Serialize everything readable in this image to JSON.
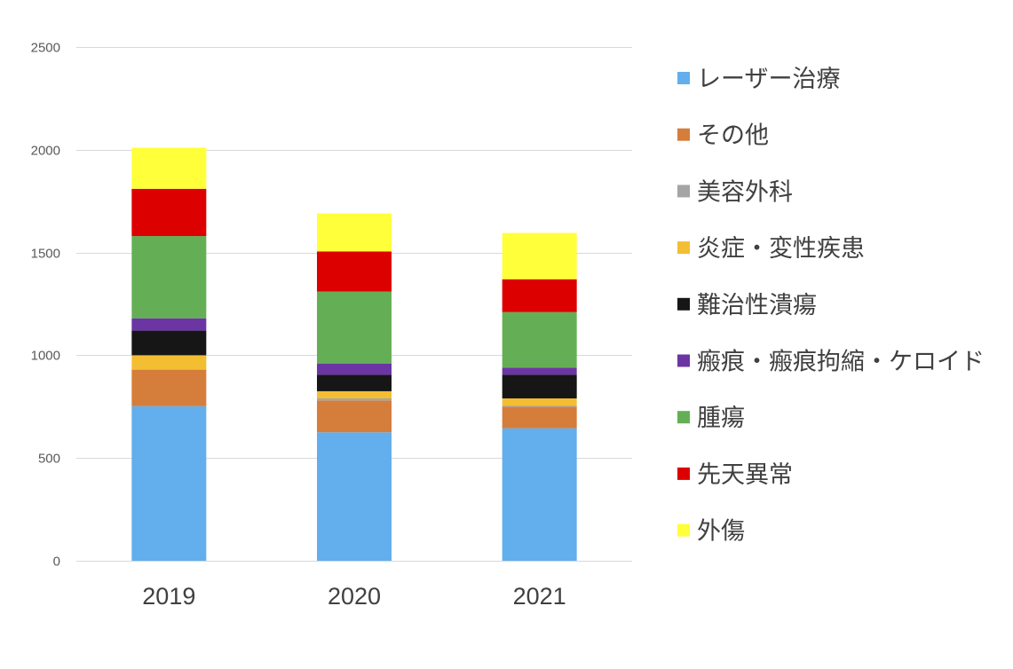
{
  "chart_data": {
    "type": "bar",
    "stacked": true,
    "categories": [
      "2019",
      "2020",
      "2021"
    ],
    "series": [
      {
        "name": "レーザー治療",
        "color": "#63aeec",
        "values": [
          752,
          625,
          645
        ]
      },
      {
        "name": "その他",
        "color": "#d57d3b",
        "values": [
          178,
          155,
          105
        ]
      },
      {
        "name": "美容外科",
        "color": "#a5a5a5",
        "values": [
          0,
          10,
          5
        ]
      },
      {
        "name": "炎症・変性疾患",
        "color": "#f4be32",
        "values": [
          70,
          35,
          35
        ]
      },
      {
        "name": "難治性潰瘍",
        "color": "#161616",
        "values": [
          120,
          80,
          115
        ]
      },
      {
        "name": "瘢痕・瘢痕拘縮・ケロイド",
        "color": "#6b36a3",
        "values": [
          60,
          55,
          35
        ]
      },
      {
        "name": "腫瘍",
        "color": "#64af55",
        "values": [
          400,
          350,
          270
        ]
      },
      {
        "name": "先天異常",
        "color": "#dd0000",
        "values": [
          230,
          195,
          160
        ]
      },
      {
        "name": "外傷",
        "color": "#ffff3a",
        "values": [
          200,
          185,
          225
        ]
      }
    ],
    "ylim": [
      0,
      2500
    ],
    "yticks": [
      0,
      500,
      1000,
      1500,
      2000,
      2500
    ],
    "grid": true,
    "legend_position": "right"
  }
}
